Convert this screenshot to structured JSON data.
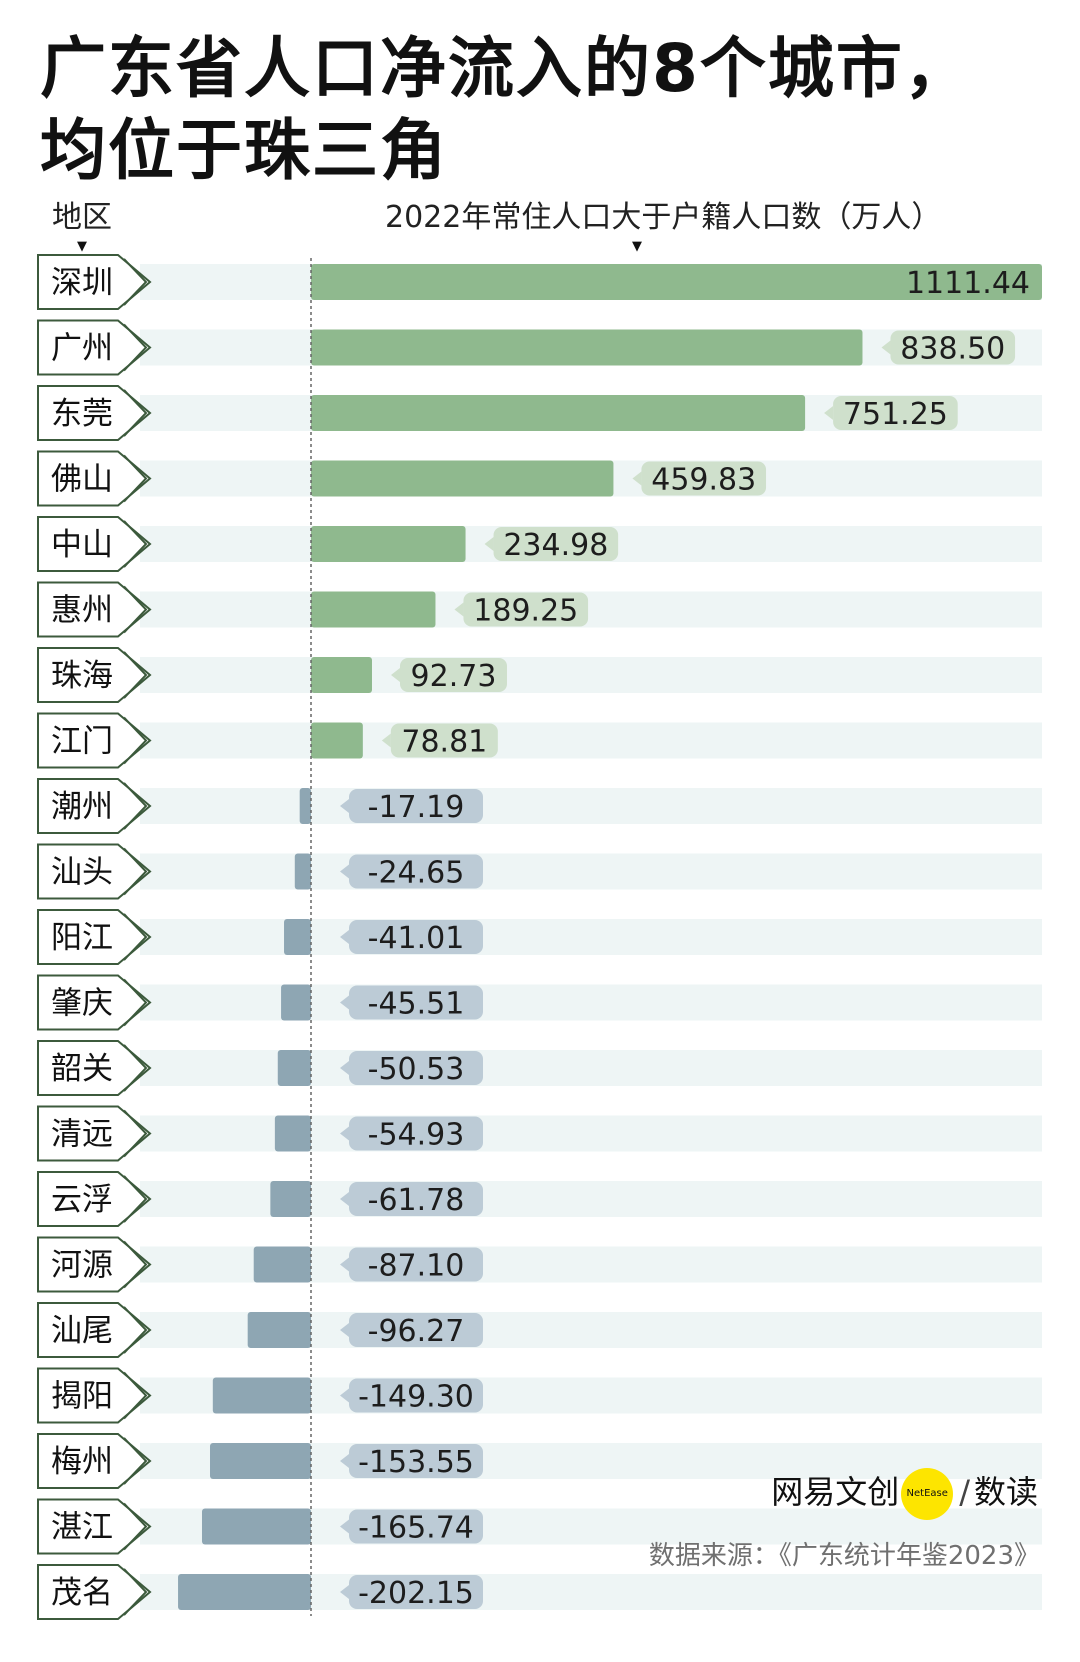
{
  "title_line1": "广东省人口净流入的8个城市，",
  "title_line2": "均位于珠三角",
  "header_region": "地区",
  "header_metric": "2022年常住人口大于户籍人口数（万人）",
  "logo": {
    "brand": "网易文创",
    "dot_text": "NetEase",
    "separator": "/",
    "column": "数读"
  },
  "source": "数据来源：《广东统计年鉴2023》",
  "colors": {
    "positive": "#8fb98e",
    "positive_label": "#cfe0cc",
    "negative": "#8ea6b3",
    "negative_label": "#bccbd6",
    "row_band": "#eef5f5",
    "tag_border": "#3c5a3c"
  },
  "chart_data": {
    "type": "bar",
    "orientation": "horizontal",
    "title": "广东省人口净流入的8个城市，均位于珠三角",
    "xlabel": "2022年常住人口大于户籍人口数（万人）",
    "ylabel": "地区",
    "categories": [
      "深圳",
      "广州",
      "东莞",
      "佛山",
      "中山",
      "惠州",
      "珠海",
      "江门",
      "潮州",
      "汕头",
      "阳江",
      "肇庆",
      "韶关",
      "清远",
      "云浮",
      "河源",
      "汕尾",
      "揭阳",
      "梅州",
      "湛江",
      "茂名"
    ],
    "values": [
      1111.44,
      838.5,
      751.25,
      459.83,
      234.98,
      189.25,
      92.73,
      78.81,
      -17.19,
      -24.65,
      -41.01,
      -45.51,
      -50.53,
      -54.93,
      -61.78,
      -87.1,
      -96.27,
      -149.3,
      -153.55,
      -165.74,
      -202.15
    ],
    "labels": [
      "1111.44",
      "838.50",
      "751.25",
      "459.83",
      "234.98",
      "189.25",
      "92.73",
      "78.81",
      "-17.19",
      "-24.65",
      "-41.01",
      "-45.51",
      "-50.53",
      "-54.93",
      "-61.78",
      "-87.10",
      "-96.27",
      "-149.30",
      "-153.55",
      "-165.74",
      "-202.15"
    ],
    "xlim": [
      -202.15,
      1111.44
    ],
    "grid": false,
    "legend": "none"
  }
}
